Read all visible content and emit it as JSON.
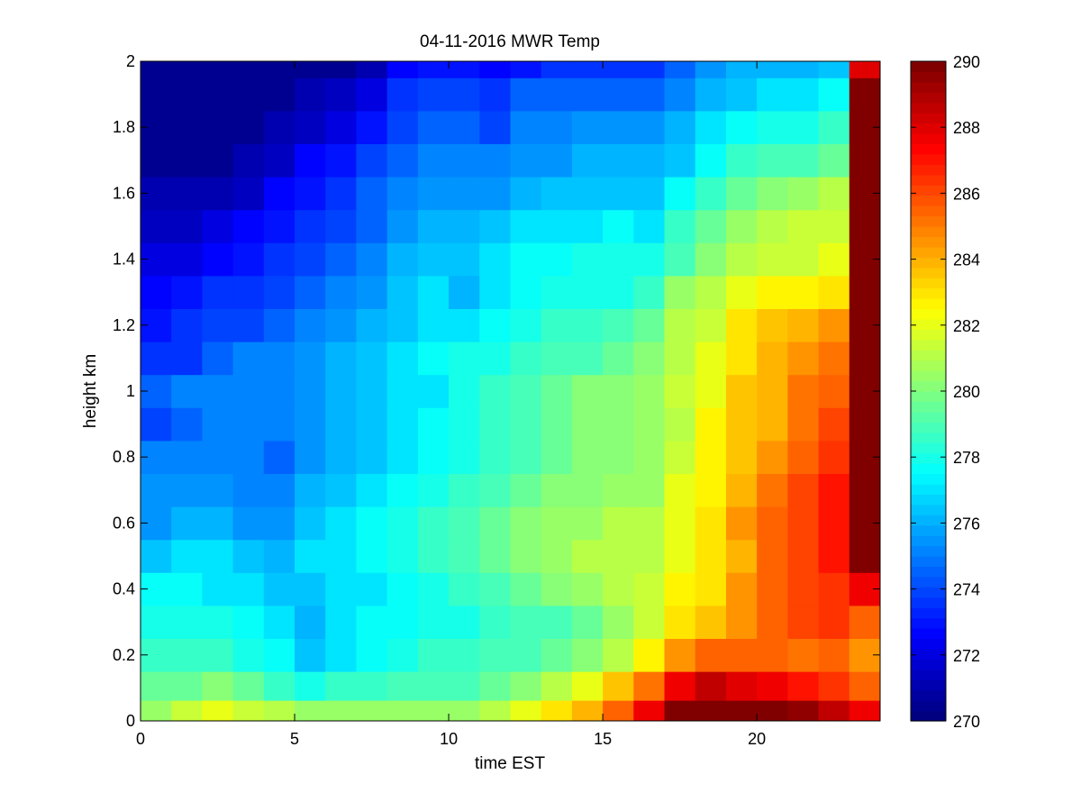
{
  "chart_data": {
    "type": "heatmap",
    "title": "04-11-2016 MWR Temp",
    "xlabel": "time EST",
    "ylabel": "height km",
    "xlim": [
      0,
      24
    ],
    "ylim": [
      0,
      2
    ],
    "x_ticks": [
      "0",
      "5",
      "10",
      "15",
      "20"
    ],
    "y_ticks": [
      "0",
      "0.2",
      "0.4",
      "0.6",
      "0.8",
      "1",
      "1.2",
      "1.4",
      "1.6",
      "1.8",
      "2"
    ],
    "colormap": "jet",
    "colorbar": {
      "min": 270,
      "max": 290,
      "ticks": [
        "270",
        "272",
        "274",
        "276",
        "278",
        "280",
        "282",
        "284",
        "286",
        "288",
        "290"
      ]
    },
    "grid": false,
    "x": [
      0.5,
      1.5,
      2.5,
      3.5,
      4.5,
      5.5,
      6.5,
      7.5,
      8.5,
      9.5,
      10.5,
      11.5,
      12.5,
      13.5,
      14.5,
      15.5,
      16.5,
      17.5,
      18.5,
      19.5,
      20.5,
      21.5,
      22.5,
      23.5
    ],
    "y": [
      0.025,
      0.1,
      0.2,
      0.3,
      0.4,
      0.5,
      0.6,
      0.7,
      0.8,
      0.9,
      1.0,
      1.1,
      1.2,
      1.3,
      1.4,
      1.5,
      1.6,
      1.7,
      1.8,
      1.9,
      2.0
    ],
    "z": [
      [
        280.5,
        281.5,
        282,
        281.5,
        281,
        280.5,
        280.5,
        280.5,
        280.5,
        280.5,
        280.5,
        281,
        282,
        283,
        284,
        285.5,
        287.5,
        290,
        290,
        290,
        290,
        289.5,
        288.5,
        287.5
      ],
      [
        279.5,
        279.5,
        280,
        279.5,
        278.5,
        278,
        278.5,
        278.5,
        279,
        279,
        279,
        279.5,
        280,
        281,
        282,
        283.5,
        285,
        287.5,
        288.5,
        288,
        287.5,
        287,
        286.5,
        285.5
      ],
      [
        278.5,
        278.5,
        278.5,
        278,
        277.5,
        276.5,
        277,
        277.5,
        278,
        278.5,
        278.5,
        279,
        279,
        279.5,
        280,
        281,
        282.5,
        284.5,
        285.5,
        285.5,
        285.5,
        285,
        285.5,
        284.5
      ],
      [
        278,
        278,
        278,
        277.5,
        277,
        276,
        277,
        277.5,
        277.5,
        278,
        278,
        278.5,
        279,
        279,
        279.5,
        280.5,
        281.5,
        283,
        283.5,
        284.5,
        285.5,
        286,
        286.5,
        285.5
      ],
      [
        277.5,
        277.5,
        277,
        277,
        276.5,
        276.5,
        277,
        277,
        277.5,
        278,
        278.5,
        279,
        279.5,
        280,
        280.5,
        281,
        281.5,
        282.5,
        283,
        284.5,
        285.5,
        286,
        286.5,
        287.5
      ],
      [
        276.5,
        277,
        277,
        276.5,
        276,
        277,
        277,
        277.5,
        278,
        278.5,
        279,
        279.5,
        280,
        280.5,
        281,
        281,
        281,
        282,
        283,
        284,
        285.5,
        286,
        287,
        290
      ],
      [
        275.5,
        276,
        276,
        275.5,
        275.5,
        276.5,
        277,
        277.5,
        278,
        278.5,
        279,
        279.5,
        280,
        280.5,
        280.5,
        281,
        281,
        282,
        283,
        284.5,
        285.5,
        286,
        287,
        290
      ],
      [
        275.5,
        275.5,
        275.5,
        275,
        275,
        276,
        276.5,
        277,
        277.5,
        278,
        278.5,
        279,
        279.5,
        280,
        280,
        280.5,
        280.5,
        282,
        282.5,
        284,
        285,
        286,
        287,
        290
      ],
      [
        275,
        275,
        275,
        275,
        274.5,
        275.5,
        276,
        276.5,
        277,
        277.5,
        278,
        278.5,
        279,
        279.5,
        280,
        280,
        280.5,
        281.5,
        282.5,
        283.5,
        284.5,
        285.5,
        286.5,
        290
      ],
      [
        274,
        274.5,
        275,
        275,
        275,
        275.5,
        276,
        276.5,
        277,
        277.5,
        278,
        278.5,
        279,
        279.5,
        280,
        280,
        280.5,
        281,
        282.5,
        283.5,
        284,
        285,
        286,
        290
      ],
      [
        274.5,
        275,
        275,
        275,
        275,
        275.5,
        276,
        276.5,
        277,
        277,
        278,
        278.5,
        279,
        279.5,
        280,
        280,
        280.5,
        281.5,
        282,
        283.5,
        284,
        285,
        285.5,
        290
      ],
      [
        273.5,
        273.5,
        274.5,
        275,
        275,
        275.5,
        276,
        276.5,
        277,
        277.5,
        278,
        278,
        278.5,
        279,
        279,
        279.5,
        280,
        281,
        282,
        283,
        284,
        284.5,
        285,
        290
      ],
      [
        273,
        273.5,
        274,
        274,
        274.5,
        275,
        275.5,
        276,
        276.5,
        277,
        277,
        277.5,
        278,
        278.5,
        278.5,
        279,
        279.5,
        281,
        281.5,
        283,
        283.5,
        284,
        284.5,
        290
      ],
      [
        272.5,
        273,
        273.5,
        273.5,
        274,
        274.5,
        275,
        275.5,
        276.5,
        277,
        276,
        277,
        277.5,
        278,
        278,
        278,
        278.5,
        280.5,
        281,
        282,
        282.5,
        282.5,
        283,
        290
      ],
      [
        272,
        272,
        272.5,
        273,
        273.5,
        274,
        274.5,
        275,
        276,
        276.5,
        276.5,
        277,
        277.5,
        277.5,
        278,
        278,
        278,
        279,
        280,
        281,
        281.5,
        281.5,
        282,
        290
      ],
      [
        271.5,
        271.5,
        272,
        272.5,
        273,
        273.5,
        274,
        274.5,
        275.5,
        276,
        276,
        276.5,
        277,
        277,
        277,
        277.5,
        277,
        278.5,
        279.5,
        280.5,
        281,
        281.5,
        281.5,
        290
      ],
      [
        271,
        271,
        271,
        271.5,
        272.5,
        273,
        273.5,
        274.5,
        275,
        275.5,
        275.5,
        275.5,
        276,
        276.5,
        276.5,
        276.5,
        276.5,
        277.5,
        278.5,
        279.5,
        280,
        280.5,
        281,
        290
      ],
      [
        270.5,
        270.5,
        270.5,
        271,
        271.5,
        272.5,
        273,
        274,
        274.5,
        275,
        275,
        275,
        275.5,
        275.5,
        276,
        276,
        276,
        276.5,
        277.5,
        278.5,
        279,
        279,
        279.5,
        290
      ],
      [
        270.5,
        270.5,
        270.5,
        270.5,
        271,
        271.5,
        272,
        273,
        274,
        274.5,
        274.5,
        274,
        275,
        275,
        275.5,
        275.5,
        275.5,
        276,
        277,
        277.5,
        278,
        278,
        278.5,
        290
      ],
      [
        270.5,
        270.5,
        270.5,
        270.5,
        270.5,
        271,
        271.5,
        272,
        273.5,
        274,
        274,
        273.5,
        274.5,
        274.5,
        274.5,
        274.5,
        274.5,
        275,
        276,
        276.5,
        277,
        277,
        277.5,
        290
      ],
      [
        270.5,
        270.5,
        270.5,
        270.5,
        270.5,
        270.5,
        270.5,
        271,
        272.5,
        273,
        273,
        272.5,
        273,
        273.5,
        273.5,
        273.5,
        273.5,
        274.5,
        275.5,
        276,
        276,
        276,
        276.5,
        288
      ]
    ]
  }
}
